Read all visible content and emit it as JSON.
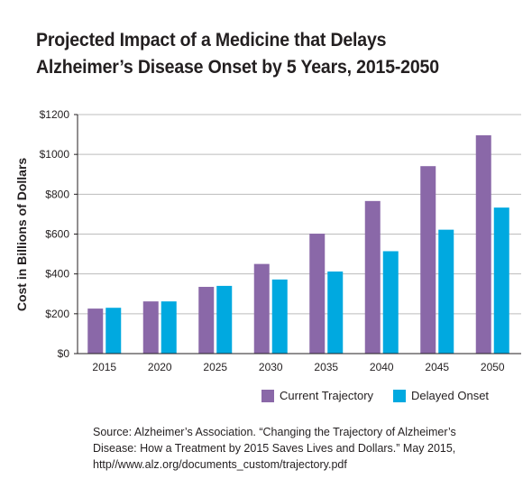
{
  "title_lines": [
    "Projected Impact of a Medicine that Delays",
    "Alzheimer’s Disease Onset by 5 Years, 2015-2050"
  ],
  "source_lines": [
    "Source: Alzheimer’s Association. “Changing the Trajectory of Alzheimer’s",
    "Disease: How a Treatment by 2015 Saves Lives and Dollars.” May 2015,",
    "http//www.alz.org/documents_custom/trajectory.pdf"
  ],
  "colors": {
    "current": "#8a68a8",
    "delayed": "#00a9e0",
    "grid": "#bcbcbc",
    "axis": "#231f20"
  },
  "chart_data": {
    "type": "bar",
    "title": "Projected Impact of a Medicine that Delays Alzheimer’s Disease Onset by 5 Years, 2015-2050",
    "xlabel": "",
    "ylabel": "Cost in Billions of Dollars",
    "categories": [
      "2015",
      "2020",
      "2025",
      "2030",
      "2035",
      "2040",
      "2045",
      "2050"
    ],
    "series": [
      {
        "name": "Current Trajectory",
        "values": [
          226,
          262,
          335,
          450,
          602,
          766,
          941,
          1096
        ]
      },
      {
        "name": "Delayed Onset",
        "values": [
          230,
          262,
          340,
          372,
          412,
          514,
          622,
          733
        ]
      }
    ],
    "ylim": [
      0,
      1200
    ],
    "yticks": [
      0,
      200,
      400,
      600,
      800,
      1000,
      1200
    ],
    "ytick_labels": [
      "$0",
      "$200",
      "$400",
      "$600",
      "$800",
      "$1000",
      "$1200"
    ],
    "grid": true,
    "legend": "bottom-right"
  }
}
